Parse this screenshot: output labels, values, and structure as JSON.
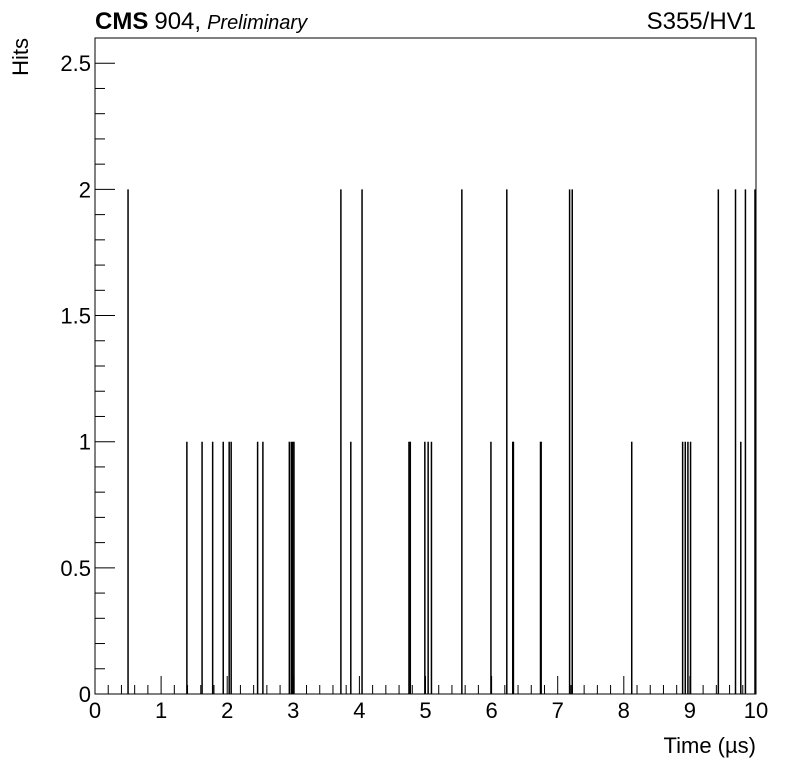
{
  "header": {
    "experiment": "CMS",
    "location": "904,",
    "status": "Preliminary",
    "label": "S355/HV1"
  },
  "chart_data": {
    "type": "bar",
    "xlabel": "Time (µs)",
    "ylabel": "Hits",
    "xlim": [
      0,
      10
    ],
    "ylim": [
      0,
      2.6
    ],
    "x_ticks": [
      "0",
      "1",
      "2",
      "3",
      "4",
      "5",
      "6",
      "7",
      "8",
      "9",
      "10"
    ],
    "y_ticks": [
      "0",
      "0.5",
      "1",
      "1.5",
      "2",
      "2.5"
    ],
    "grid": false,
    "legend": "none",
    "series": [
      {
        "x": [
          0.5,
          1.39,
          1.62,
          1.78,
          1.94,
          2.03,
          2.06,
          2.46,
          2.54,
          2.94,
          2.97,
          2.99,
          3.01,
          3.72,
          3.87,
          4.04,
          4.75,
          4.77,
          4.99,
          5.04,
          5.09,
          5.55,
          5.99,
          6.23,
          6.32,
          6.33,
          6.74,
          6.75,
          7.18,
          7.22,
          8.12,
          8.89,
          8.93,
          8.97,
          9.01,
          9.43,
          9.69,
          9.77,
          9.84,
          10.0
        ],
        "values": [
          2,
          1,
          1,
          1,
          1,
          1,
          1,
          1,
          1,
          1,
          1,
          1,
          1,
          2,
          1,
          2,
          1,
          1,
          1,
          1,
          1,
          2,
          1,
          2,
          1,
          1,
          1,
          1,
          2,
          2,
          1,
          1,
          1,
          1,
          1,
          2,
          2,
          1,
          2,
          2
        ]
      }
    ]
  }
}
